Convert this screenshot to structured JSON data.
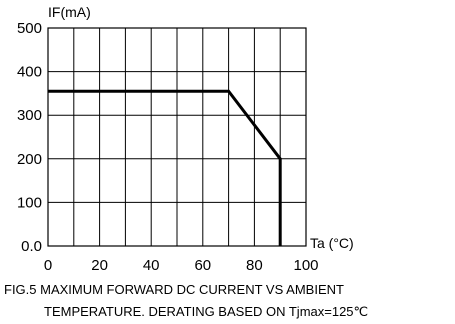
{
  "chart_data": {
    "type": "line",
    "title": "",
    "xlabel": "Ta (°C)",
    "ylabel": "IF(mA)",
    "xlim": [
      0,
      100
    ],
    "ylim": [
      0,
      500
    ],
    "x_ticks": [
      0,
      20,
      40,
      60,
      80,
      100
    ],
    "x_tick_labels": [
      "0",
      "20",
      "40",
      "60",
      "80",
      "100"
    ],
    "y_ticks": [
      0,
      100,
      200,
      300,
      400,
      500
    ],
    "y_tick_labels": [
      "0.0",
      "100",
      "200",
      "300",
      "400",
      "500"
    ],
    "x_grid": [
      0,
      10,
      20,
      30,
      40,
      50,
      60,
      70,
      80,
      90,
      100
    ],
    "y_grid": [
      0,
      100,
      200,
      300,
      400,
      500
    ],
    "grid": true,
    "legend": "none",
    "series": [
      {
        "x": [
          0,
          70,
          90,
          90
        ],
        "y": [
          355,
          355,
          200,
          0
        ]
      }
    ],
    "caption": [
      "FIG.5 MAXIMUM FORWARD DC CURRENT VS AMBIENT",
      "TEMPERATURE. DERATING BASED ON Tjmax=125℃"
    ]
  }
}
